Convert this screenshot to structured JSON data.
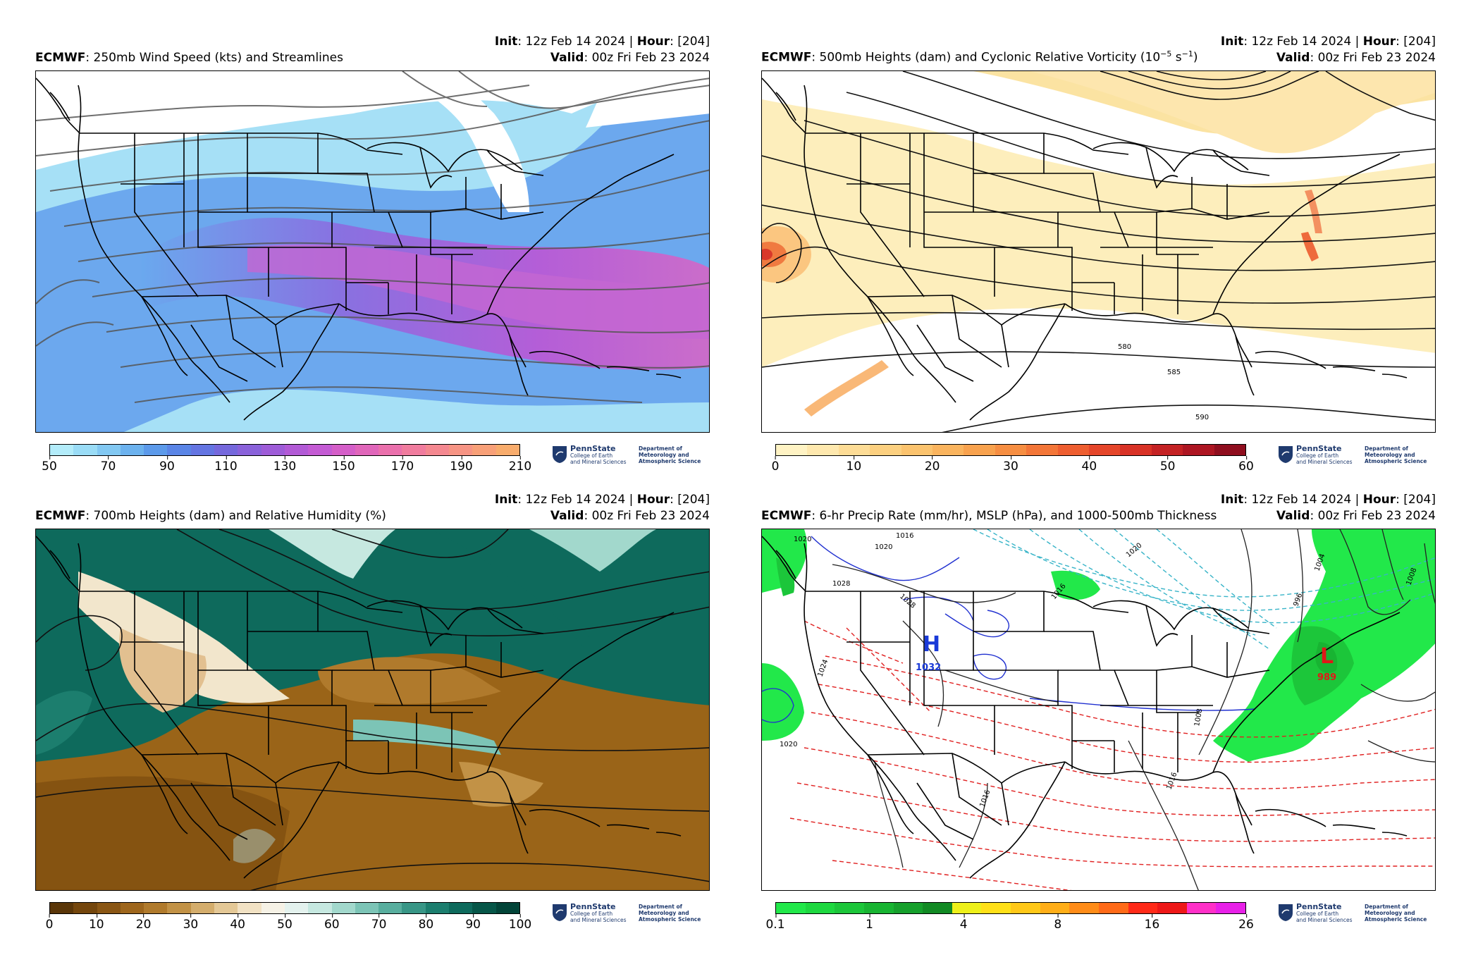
{
  "panels": [
    {
      "model": "ECMWF",
      "title": ": 250mb Wind Speed (kts) and Streamlines",
      "init_label": "Init",
      "init_value": ": 12z Feb 14 2024 | ",
      "hour_label": "Hour",
      "hour_value": ": [204]",
      "valid_label": "Valid",
      "valid_value": ": 00z Fri Feb 23 2024",
      "colorbar": {
        "colors": [
          "#b3ecfa",
          "#9adcf6",
          "#82c8f2",
          "#6cb2ee",
          "#5c9aea",
          "#5a85e6",
          "#6475e2",
          "#7568dc",
          "#8a62da",
          "#9e5cd8",
          "#b25ad6",
          "#c45bd4",
          "#d45ec8",
          "#e066ba",
          "#ea70ac",
          "#f07c9e",
          "#f48890",
          "#f69484",
          "#f8a078",
          "#f8ac6c"
        ],
        "ticks": [
          "50",
          "70",
          "90",
          "110",
          "130",
          "150",
          "170",
          "190",
          "210"
        ]
      }
    },
    {
      "model": "ECMWF",
      "title": ": 500mb Heights (dam) and Cyclonic Relative Vorticity (10",
      "title_sup": "−5",
      "title_end": " s",
      "title_sup2": "−1",
      "title_close": ")",
      "init_label": "Init",
      "init_value": ": 12z Feb 14 2024 | ",
      "hour_label": "Hour",
      "hour_value": ": [204]",
      "valid_label": "Valid",
      "valid_value": ": 00z Fri Feb 23 2024",
      "contour_labels": [
        "580",
        "585",
        "590"
      ],
      "colorbar": {
        "colors": [
          "#fff3c4",
          "#fee8ae",
          "#fddc96",
          "#fcd080",
          "#fbc36e",
          "#fab45e",
          "#f8a24e",
          "#f68e42",
          "#f37638",
          "#ee5e30",
          "#e5462a",
          "#d83226",
          "#c42224",
          "#ad1622",
          "#8f0e1e"
        ],
        "ticks": [
          "0",
          "10",
          "20",
          "30",
          "40",
          "50",
          "60"
        ]
      }
    },
    {
      "model": "ECMWF",
      "title": ": 700mb Heights (dam) and Relative Humidity (%)",
      "init_label": "Init",
      "init_value": ": 12z Feb 14 2024 | ",
      "hour_label": "Hour",
      "hour_value": ": [204]",
      "valid_label": "Valid",
      "valid_value": ": 00z Fri Feb 23 2024",
      "colorbar": {
        "colors": [
          "#5a3608",
          "#74460c",
          "#8a5614",
          "#9e661c",
          "#b07a2c",
          "#c29246",
          "#d4ad6c",
          "#e4c896",
          "#f2e2c4",
          "#f6f2e6",
          "#e4f2ee",
          "#c6e8e0",
          "#a2d8cc",
          "#7cc4b6",
          "#58ae9e",
          "#389686",
          "#1c7e6e",
          "#0e6a5c",
          "#065648",
          "#024438"
        ],
        "ticks": [
          "0",
          "10",
          "20",
          "30",
          "40",
          "50",
          "60",
          "70",
          "80",
          "90",
          "100"
        ]
      }
    },
    {
      "model": "ECMWF",
      "title": ": 6-hr Precip Rate (mm/hr), MSLP (hPa), and 1000-500mb Thickness",
      "init_label": "Init",
      "init_value": ": 12z Feb 14 2024 | ",
      "hour_label": "Hour",
      "hour_value": ": [204]",
      "valid_label": "Valid",
      "valid_value": ": 00z Fri Feb 23 2024",
      "high_label": "H",
      "high_value": "1032",
      "low_label": "L",
      "low_value": "989",
      "isobar_labels": [
        "1020",
        "1016",
        "1020",
        "1028",
        "1024",
        "1020",
        "1004",
        "1008",
        "996",
        "1016",
        "1016",
        "1008",
        "1016",
        "1020",
        "1028"
      ],
      "colorbar": {
        "colors": [
          "#22e84a",
          "#1ed840",
          "#1cc63a",
          "#18b432",
          "#16a02c",
          "#128a24",
          "#eef01a",
          "#ffe018",
          "#ffc818",
          "#ffae18",
          "#ff8c18",
          "#ff6a18",
          "#ff2a18",
          "#ee1818",
          "#ff30c8",
          "#e820e8"
        ],
        "ticks": [
          "0.1",
          "1",
          "4",
          "8",
          "16",
          "26"
        ]
      }
    }
  ],
  "branding": {
    "university": "PennState",
    "college": [
      "College of Earth",
      "and Mineral Sciences"
    ],
    "department": [
      "Department of",
      "Meteorology and",
      "Atmospheric Science"
    ]
  },
  "colors": {
    "coast": "#000000",
    "wind_stream": "#555555",
    "height_contour": "#111111",
    "thickness_cold": "#38b4c8",
    "thickness_warm": "#e02020",
    "isobar": "#222222",
    "blue_isobar": "#2030d0"
  }
}
